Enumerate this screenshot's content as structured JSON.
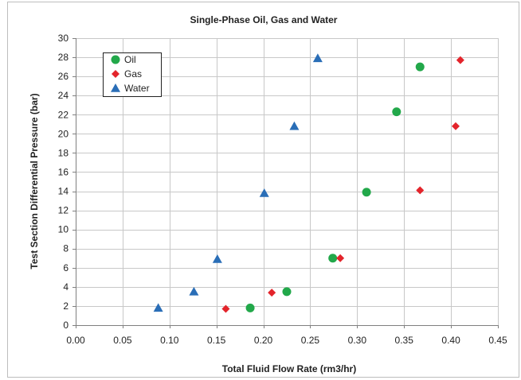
{
  "chart_data": {
    "type": "scatter",
    "title": "Single-Phase Oil,  Gas and Water",
    "xlabel": "Total Fluid Flow Rate (rm3/hr)",
    "ylabel": "Test Section Differential Pressure (bar)",
    "xlim": [
      0,
      0.45
    ],
    "ylim": [
      0,
      30
    ],
    "xticks": [
      "0.00",
      "0.05",
      "0.10",
      "0.15",
      "0.20",
      "0.25",
      "0.30",
      "0.35",
      "0.40",
      "0.45"
    ],
    "yticks": [
      "0",
      "2",
      "4",
      "6",
      "8",
      "10",
      "12",
      "14",
      "16",
      "18",
      "20",
      "22",
      "24",
      "26",
      "28",
      "30"
    ],
    "grid": true,
    "legend_position": "top-left",
    "series": [
      {
        "name": "Oil",
        "marker": "circle",
        "color": "#22a84a",
        "points": [
          {
            "x": 0.186,
            "y": 1.8
          },
          {
            "x": 0.225,
            "y": 3.5
          },
          {
            "x": 0.274,
            "y": 7.0
          },
          {
            "x": 0.31,
            "y": 13.9
          },
          {
            "x": 0.342,
            "y": 22.3
          },
          {
            "x": 0.367,
            "y": 27.0
          }
        ]
      },
      {
        "name": "Gas",
        "marker": "diamond",
        "color": "#e3242b",
        "points": [
          {
            "x": 0.16,
            "y": 1.7
          },
          {
            "x": 0.209,
            "y": 3.4
          },
          {
            "x": 0.282,
            "y": 7.0
          },
          {
            "x": 0.367,
            "y": 14.1
          },
          {
            "x": 0.405,
            "y": 20.8
          },
          {
            "x": 0.41,
            "y": 27.7
          }
        ]
      },
      {
        "name": "Water",
        "marker": "triangle",
        "color": "#2a6eb7",
        "points": [
          {
            "x": 0.088,
            "y": 1.8
          },
          {
            "x": 0.126,
            "y": 3.5
          },
          {
            "x": 0.151,
            "y": 6.9
          },
          {
            "x": 0.201,
            "y": 13.8
          },
          {
            "x": 0.233,
            "y": 20.8
          },
          {
            "x": 0.258,
            "y": 27.9
          }
        ]
      }
    ]
  }
}
